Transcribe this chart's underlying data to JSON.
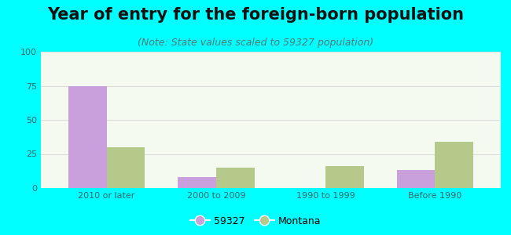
{
  "title": "Year of entry for the foreign-born population",
  "subtitle": "(Note: State values scaled to 59327 population)",
  "categories": [
    "2010 or later",
    "2000 to 2009",
    "1990 to 1999",
    "Before 1990"
  ],
  "series": [
    {
      "label": "59327",
      "values": [
        75,
        8,
        0,
        13
      ],
      "color": "#c9a0dc"
    },
    {
      "label": "Montana",
      "values": [
        30,
        15,
        16,
        34
      ],
      "color": "#b5c98a"
    }
  ],
  "ylim": [
    0,
    100
  ],
  "yticks": [
    0,
    25,
    50,
    75,
    100
  ],
  "bar_width": 0.35,
  "background_outer": "#00ffff",
  "background_inner": "#f5faf0",
  "grid_color": "#dddddd",
  "title_fontsize": 15,
  "subtitle_fontsize": 9,
  "tick_fontsize": 8,
  "legend_fontsize": 9
}
